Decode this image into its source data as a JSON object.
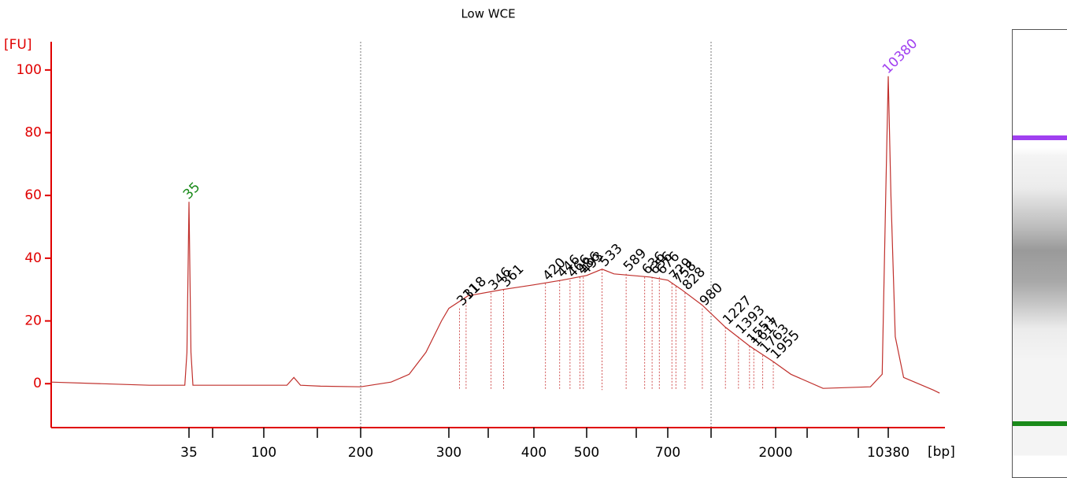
{
  "chart_data": {
    "type": "electropherogram",
    "title": "Low WCE",
    "y_unit": "[FU]",
    "x_unit": "[bp]",
    "ylim": [
      -14,
      109
    ],
    "yticks": [
      0,
      20,
      40,
      60,
      80,
      100
    ],
    "xticks": [
      35,
      100,
      200,
      300,
      400,
      500,
      700,
      2000,
      10380
    ],
    "axis_color": "#e00000",
    "trace": {
      "color": "#c0302c",
      "x": [
        5,
        20,
        33,
        34,
        35,
        36,
        37,
        60,
        118,
        124,
        130,
        150,
        200,
        230,
        250,
        270,
        290,
        300,
        320,
        360,
        400,
        450,
        500,
        533,
        560,
        650,
        700,
        800,
        980,
        1227,
        1551,
        1955,
        2500,
        4000,
        8000,
        9500,
        10000,
        10380,
        10800,
        11500,
        13000,
        20000,
        22000
      ],
      "values": [
        0.5,
        -0.5,
        -0.5,
        10,
        58,
        10,
        -0.5,
        -0.5,
        -0.5,
        2,
        -0.5,
        -0.8,
        -1,
        0.5,
        3,
        10,
        20,
        24,
        28,
        30,
        31.5,
        33,
        34.5,
        36.5,
        35,
        34,
        33,
        30,
        25,
        18,
        12,
        7,
        3,
        -1.5,
        -1,
        3,
        60,
        98,
        60,
        15,
        2,
        -2,
        -3
      ]
    },
    "marker_peaks": {
      "bp": [
        35,
        10380
      ],
      "fu": [
        58,
        98
      ],
      "colors": [
        "#1a8a1a",
        "#a040f0"
      ]
    },
    "smear_peaks": {
      "bp": [
        311,
        318,
        346,
        361,
        420,
        446,
        466,
        486,
        493,
        533,
        589,
        636,
        656,
        676,
        729,
        758,
        828,
        980,
        1227,
        1393,
        1551,
        1617,
        1763,
        1955
      ],
      "fu": [
        24,
        26,
        29,
        30,
        32,
        33,
        33,
        34,
        34,
        36.5,
        35,
        34,
        34,
        34,
        32,
        31,
        29,
        24,
        18,
        15,
        12,
        11,
        9,
        7
      ]
    }
  }
}
